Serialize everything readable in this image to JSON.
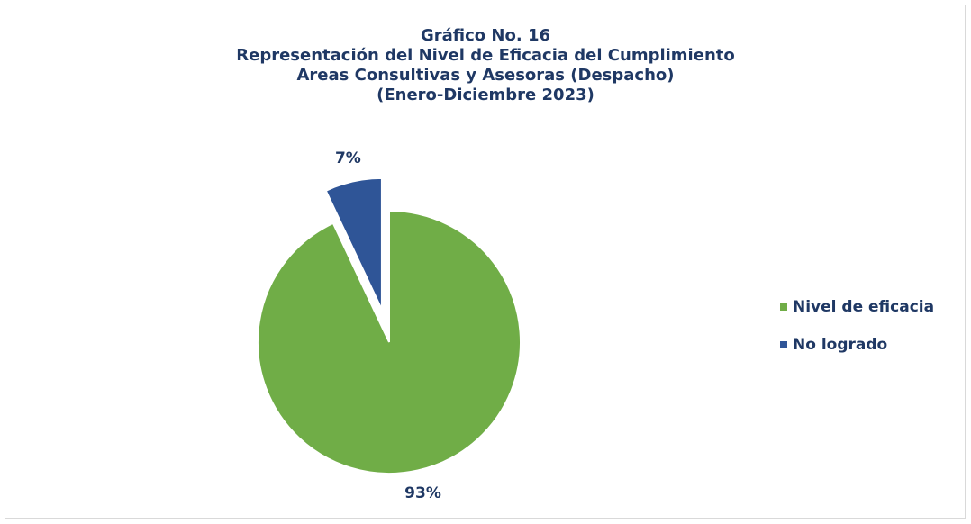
{
  "chart_data": {
    "type": "pie",
    "title": [
      "Gráfico No. 16",
      "Representación del Nivel de Eficacia del Cumplimiento",
      "Areas Consultivas y Asesoras (Despacho)",
      "(Enero-Diciembre 2023)"
    ],
    "categories": [
      "Nivel de eficacia",
      "No logrado"
    ],
    "values": [
      93,
      7
    ],
    "value_labels": [
      "93%",
      "7%"
    ],
    "colors": [
      "#70ad47",
      "#2f5597"
    ],
    "explode": [
      false,
      true
    ],
    "legend": "right"
  }
}
